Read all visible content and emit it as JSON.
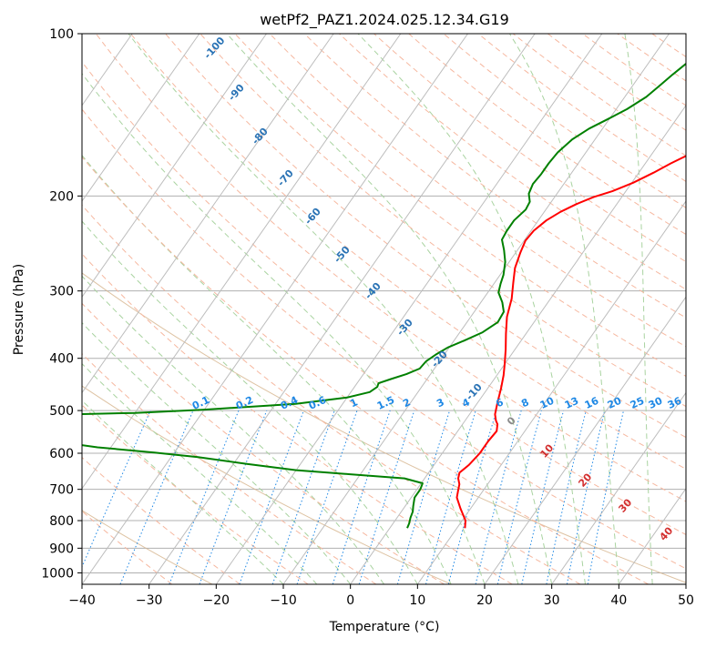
{
  "chart_data": {
    "type": "line",
    "subtype": "skew-t log-p diagram",
    "title": "wetPf2_PAZ1.2024.025.12.34.G19",
    "xlabel": "Temperature (°C)",
    "ylabel": "Pressure (hPa)",
    "xlim": [
      -40,
      50
    ],
    "ylim": [
      1050,
      100
    ],
    "y_scale": "log",
    "x_ticks": [
      -40,
      -30,
      -20,
      -10,
      0,
      10,
      20,
      30,
      40,
      50
    ],
    "y_ticks": [
      100,
      200,
      300,
      400,
      500,
      600,
      700,
      800,
      900,
      1000
    ],
    "grid": true,
    "series": [
      {
        "key": "temperature",
        "color": "#ff0000",
        "points": [
          [
            11.2,
            826
          ],
          [
            10.5,
            800
          ],
          [
            8.5,
            760
          ],
          [
            6.8,
            725
          ],
          [
            6.3,
            705
          ],
          [
            5.8,
            685
          ],
          [
            5.0,
            668
          ],
          [
            4.6,
            652
          ],
          [
            5.2,
            630
          ],
          [
            5.6,
            600
          ],
          [
            5.6,
            570
          ],
          [
            5.8,
            546
          ],
          [
            5.2,
            530
          ],
          [
            4.6,
            522
          ],
          [
            3.8,
            508
          ],
          [
            3.0,
            485
          ],
          [
            2.0,
            455
          ],
          [
            1.0,
            430
          ],
          [
            0.0,
            410
          ],
          [
            -1.4,
            385
          ],
          [
            -3.0,
            360
          ],
          [
            -4.6,
            335
          ],
          [
            -5.8,
            310
          ],
          [
            -7.2,
            290
          ],
          [
            -8.5,
            272
          ],
          [
            -9.3,
            255
          ],
          [
            -9.8,
            242
          ],
          [
            -9.6,
            232
          ],
          [
            -8.8,
            222
          ],
          [
            -7.6,
            214
          ],
          [
            -6.0,
            207
          ],
          [
            -4.2,
            201
          ],
          [
            -2.0,
            196
          ],
          [
            0.2,
            189
          ],
          [
            2.2,
            181
          ],
          [
            3.8,
            174
          ],
          [
            6.0,
            166
          ],
          [
            8.3,
            158
          ],
          [
            10.5,
            151
          ],
          [
            12.3,
            145
          ],
          [
            13.6,
            138
          ],
          [
            15.0,
            131
          ],
          [
            17.2,
            124
          ],
          [
            19.5,
            117
          ],
          [
            21.5,
            110
          ],
          [
            23.3,
            104
          ],
          [
            24.4,
            100
          ]
        ]
      },
      {
        "key": "dewpoint",
        "color": "#008000",
        "points": [
          [
            2.6,
            826
          ],
          [
            2.4,
            810
          ],
          [
            2.0,
            790
          ],
          [
            1.7,
            770
          ],
          [
            1.2,
            752
          ],
          [
            0.5,
            725
          ],
          [
            0.5,
            700
          ],
          [
            0.2,
            682
          ],
          [
            -3.0,
            668
          ],
          [
            -12.5,
            655
          ],
          [
            -20.0,
            645
          ],
          [
            -28.0,
            628
          ],
          [
            -36.0,
            610
          ],
          [
            -43.0,
            598
          ],
          [
            -52.0,
            585
          ],
          [
            -63.0,
            562
          ],
          [
            -76.0,
            560
          ],
          [
            -82.0,
            516
          ],
          [
            -79.0,
            513
          ],
          [
            -65.0,
            510
          ],
          [
            -50.0,
            505
          ],
          [
            -40.0,
            498
          ],
          [
            -27.0,
            486
          ],
          [
            -20.0,
            473
          ],
          [
            -17.2,
            462
          ],
          [
            -16.6,
            452
          ],
          [
            -16.8,
            445
          ],
          [
            -15.4,
            437
          ],
          [
            -13.6,
            428
          ],
          [
            -12.2,
            418
          ],
          [
            -12.0,
            405
          ],
          [
            -11.2,
            393
          ],
          [
            -10.2,
            382
          ],
          [
            -8.5,
            371
          ],
          [
            -6.6,
            358
          ],
          [
            -5.4,
            343
          ],
          [
            -5.6,
            328
          ],
          [
            -6.8,
            315
          ],
          [
            -8.4,
            302
          ],
          [
            -9.0,
            291
          ],
          [
            -9.5,
            280
          ],
          [
            -10.6,
            265
          ],
          [
            -12.0,
            252
          ],
          [
            -13.4,
            241
          ],
          [
            -13.6,
            232
          ],
          [
            -13.6,
            222
          ],
          [
            -13.0,
            212
          ],
          [
            -13.2,
            205
          ],
          [
            -14.2,
            198
          ],
          [
            -14.6,
            190
          ],
          [
            -14.4,
            182
          ],
          [
            -14.4,
            174
          ],
          [
            -14.2,
            166
          ],
          [
            -13.4,
            157
          ],
          [
            -12.0,
            150
          ],
          [
            -10.2,
            144
          ],
          [
            -8.4,
            138
          ],
          [
            -6.8,
            131
          ],
          [
            -6.0,
            125
          ],
          [
            -5.2,
            119
          ],
          [
            -4.4,
            114
          ],
          [
            -3.4,
            108
          ],
          [
            -2.4,
            103
          ],
          [
            -1.6,
            100
          ]
        ]
      }
    ],
    "dry_adiabat_labels": [
      -100,
      -90,
      -80,
      -70,
      -60,
      -50,
      -40,
      -30,
      -20,
      -10
    ],
    "moist_adiabat_labels": [
      0,
      10,
      20,
      30,
      40
    ],
    "mixing_ratio_labels": [
      "0.1",
      "0.2",
      "0.4",
      "0.6",
      "1",
      "1.5",
      "2",
      "3",
      "4",
      "6",
      "8",
      "10",
      "13",
      "16",
      "20",
      "25",
      "30",
      "36"
    ],
    "colors": {
      "temperature": "#ff0000",
      "dewpoint": "#008000",
      "isotherm": "#bdbdbd",
      "isobar": "#b0b0b0",
      "dry_adiabat": "#f6b8a0",
      "moist_adiabat": "#a9d3a0",
      "mixing_ratio": "#1e88e5",
      "dry_label": "#2a73b5",
      "moist_label": "#d32f2f",
      "tan_curve": "#d6b48c"
    }
  }
}
